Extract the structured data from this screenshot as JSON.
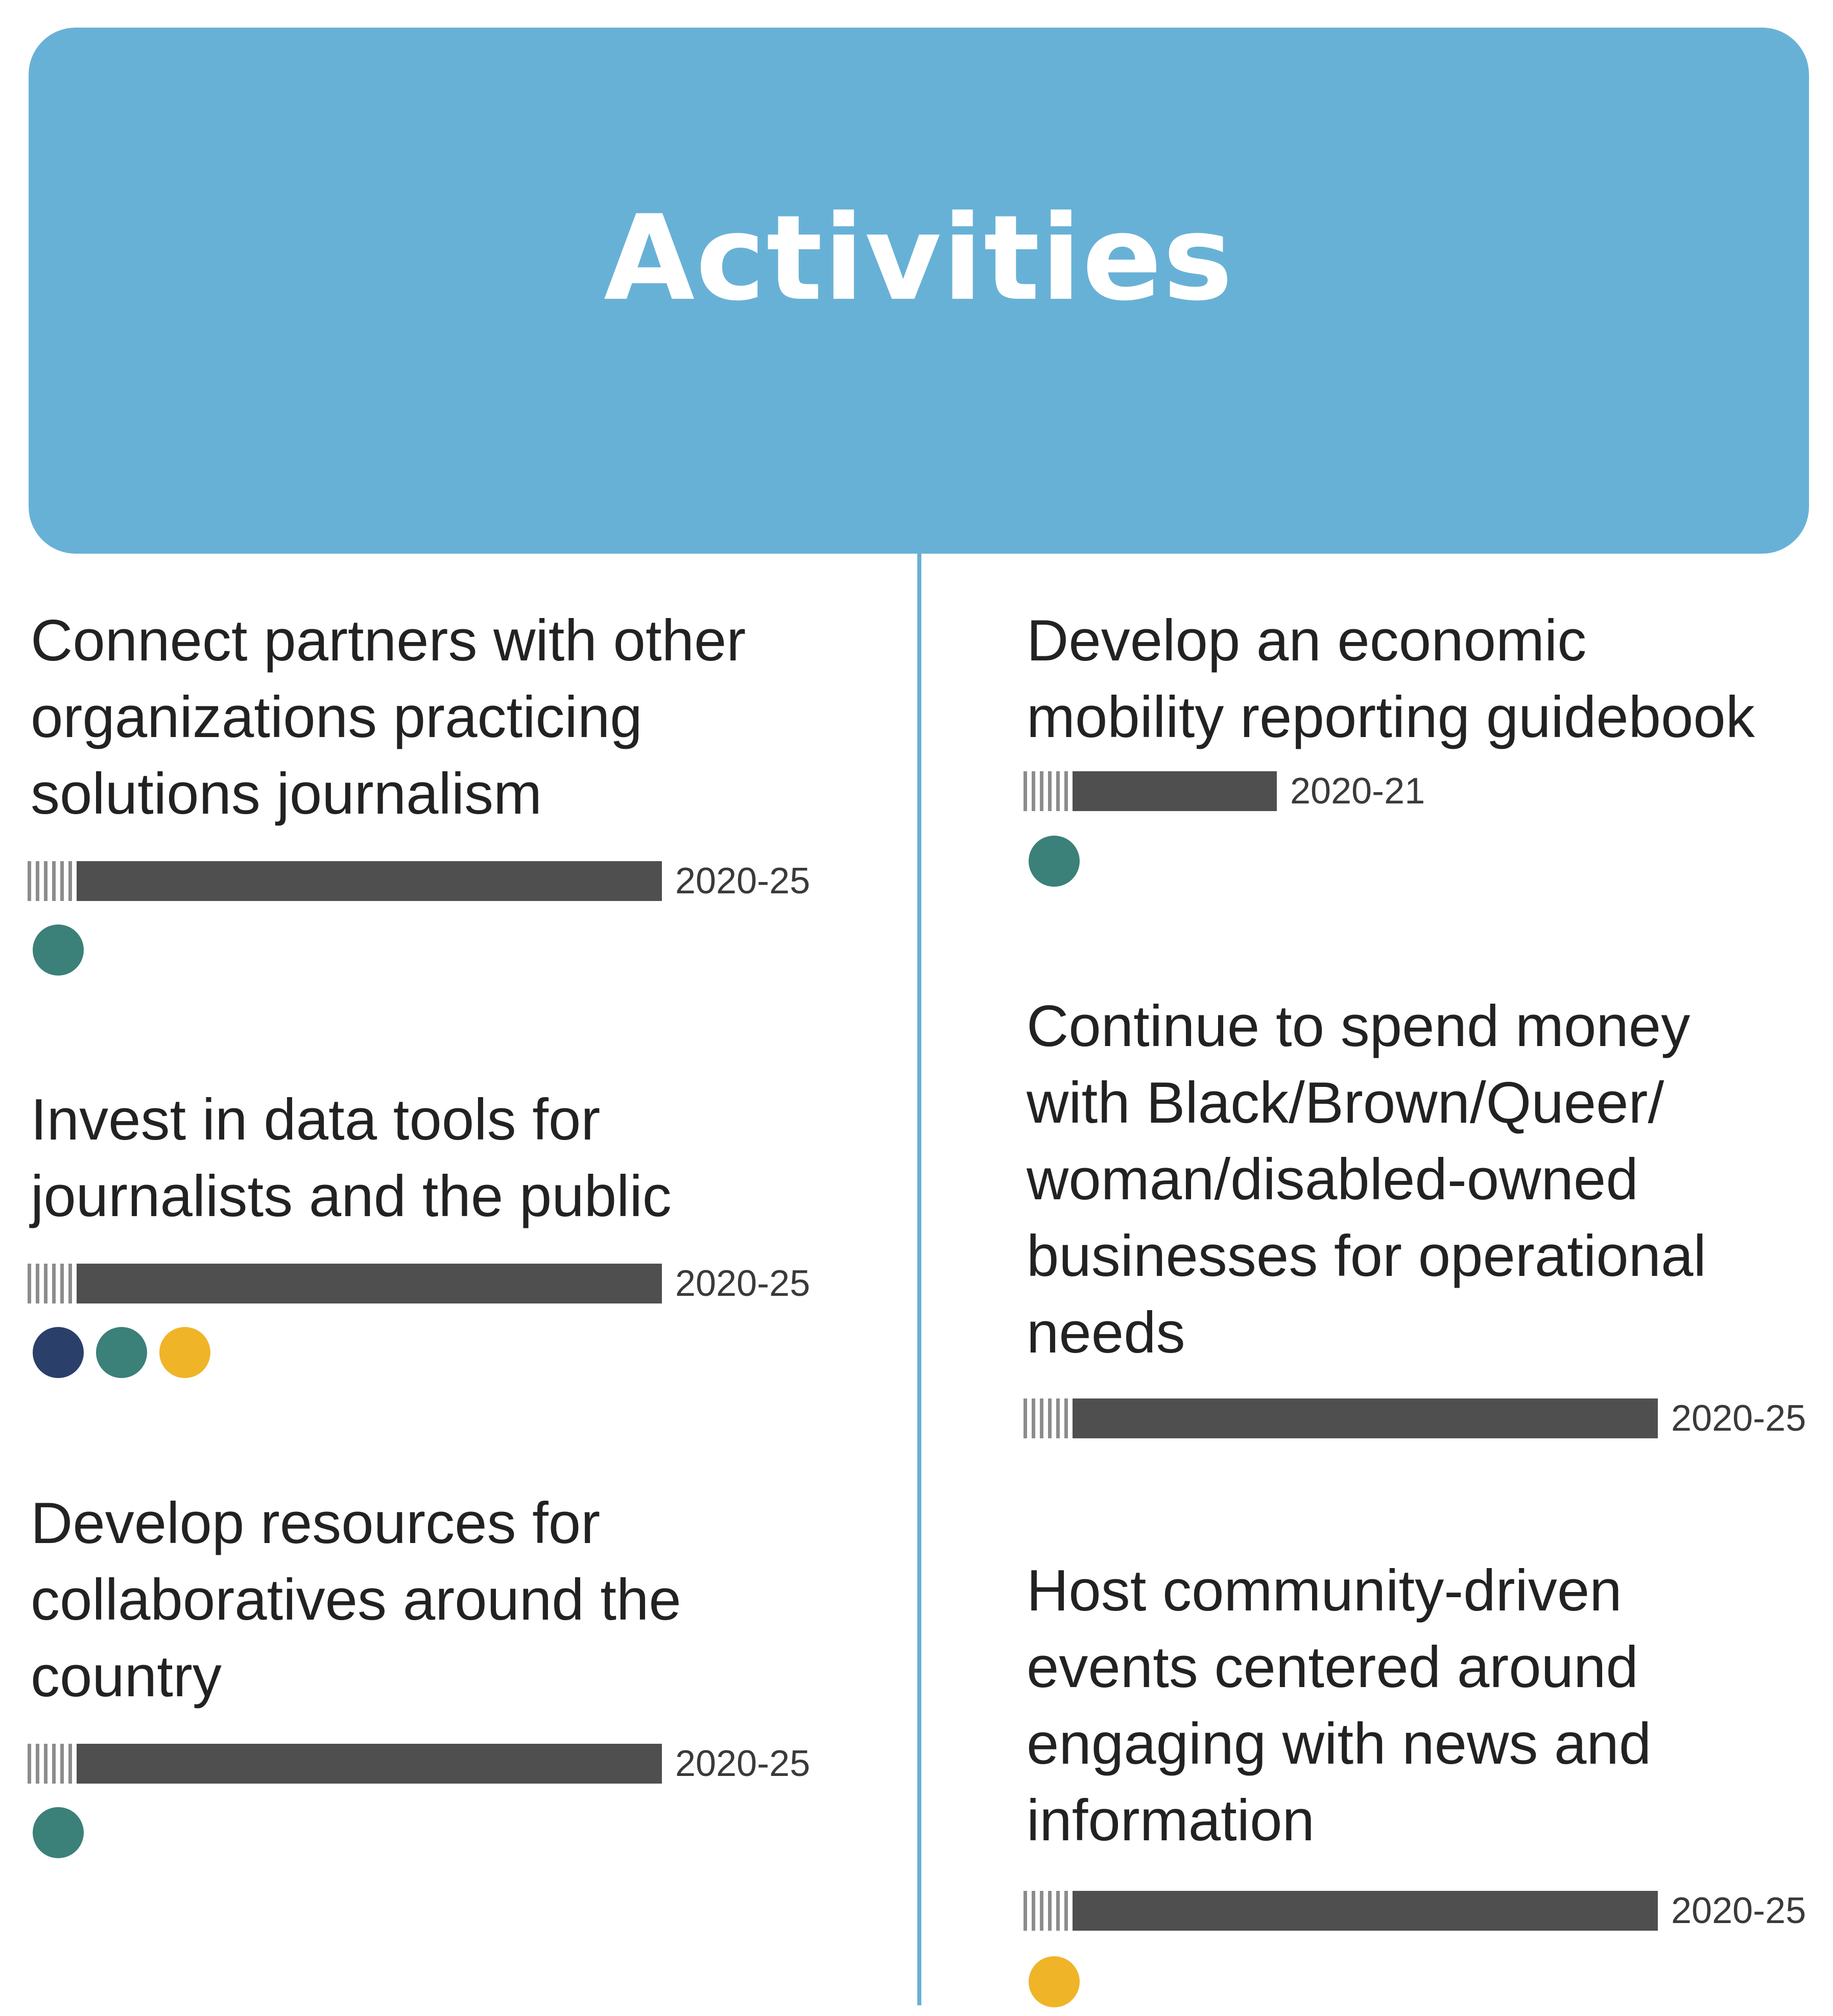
{
  "header": {
    "title": "Activities"
  },
  "colors": {
    "header_bg": "#68b1d6",
    "bar": "#4f4f4f",
    "navy": "#2b3f6b",
    "teal": "#3b8079",
    "gold": "#f0b429"
  },
  "left_activities": [
    {
      "lines": [
        "Connect partners with other",
        "organizations practicing",
        "solutions journalism"
      ],
      "period": "2020-25",
      "dots": [
        "teal"
      ]
    },
    {
      "lines": [
        "Invest in data tools for",
        "journalists and the public"
      ],
      "period": "2020-25",
      "dots": [
        "navy",
        "teal",
        "gold"
      ]
    },
    {
      "lines": [
        "Develop resources for",
        "collaboratives around the",
        "country"
      ],
      "period": "2020-25",
      "dots": [
        "teal"
      ]
    }
  ],
  "right_activities": [
    {
      "lines": [
        "Develop an economic",
        "mobility reporting guidebook"
      ],
      "period": "2020-21",
      "dots": [
        "teal"
      ]
    },
    {
      "lines": [
        "Continue to spend money",
        "with Black/Brown/Queer/",
        "woman/disabled-owned",
        "businesses for operational",
        "needs"
      ],
      "period": "2020-25",
      "dots": []
    },
    {
      "lines": [
        "Host community-driven",
        "events centered around",
        "engaging with news and",
        "information"
      ],
      "period": "2020-25",
      "dots": [
        "gold"
      ]
    }
  ]
}
